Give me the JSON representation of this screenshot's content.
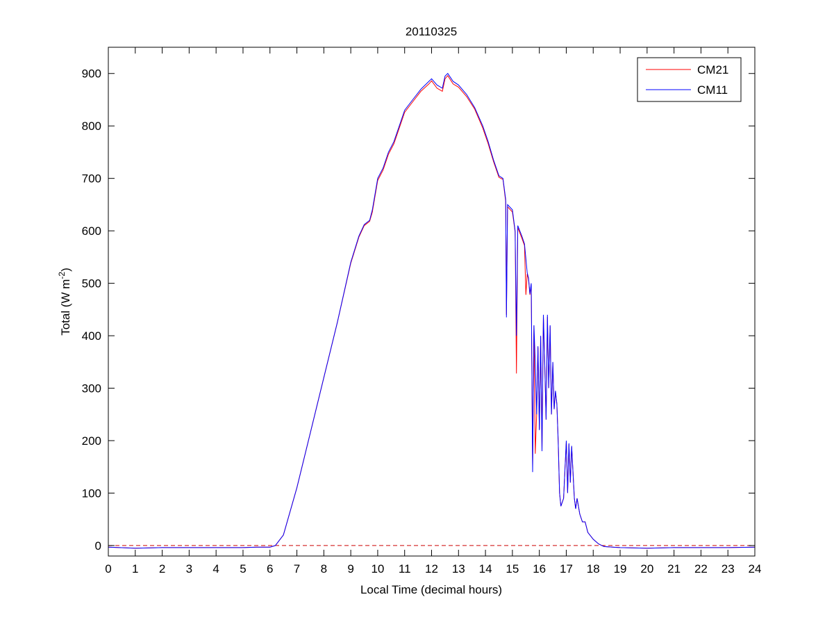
{
  "chart_data": {
    "type": "line",
    "title": "20110325",
    "xlabel": "Local Time (decimal hours)",
    "ylabel": {
      "main": "Total (W m",
      "sup": "-2",
      "close": ")"
    },
    "xlim": [
      0,
      24
    ],
    "ylim": [
      -20,
      950
    ],
    "xticks": [
      0,
      1,
      2,
      3,
      4,
      5,
      6,
      7,
      8,
      9,
      10,
      11,
      12,
      13,
      14,
      15,
      16,
      17,
      18,
      19,
      20,
      21,
      22,
      23,
      24
    ],
    "yticks": [
      0,
      100,
      200,
      300,
      400,
      500,
      600,
      700,
      800,
      900
    ],
    "grid": false,
    "legend_placement": "top-right",
    "reference_line": {
      "y": 0,
      "color": "#cc0000",
      "style": "dashed"
    },
    "series": [
      {
        "name": "CM21",
        "color": "#ff0000",
        "points": [
          [
            0,
            -3
          ],
          [
            1,
            -5
          ],
          [
            2,
            -4
          ],
          [
            3,
            -4
          ],
          [
            4,
            -4
          ],
          [
            5,
            -4
          ],
          [
            5.5,
            -3
          ],
          [
            6,
            -3
          ],
          [
            6.2,
            0
          ],
          [
            6.5,
            20
          ],
          [
            7,
            110
          ],
          [
            7.5,
            215
          ],
          [
            8,
            320
          ],
          [
            8.5,
            425
          ],
          [
            9,
            538
          ],
          [
            9.3,
            588
          ],
          [
            9.5,
            610
          ],
          [
            9.7,
            618
          ],
          [
            9.8,
            636
          ],
          [
            10,
            696
          ],
          [
            10.2,
            716
          ],
          [
            10.4,
            746
          ],
          [
            10.6,
            766
          ],
          [
            10.8,
            796
          ],
          [
            11,
            826
          ],
          [
            11.3,
            846
          ],
          [
            11.6,
            866
          ],
          [
            11.9,
            880
          ],
          [
            12,
            886
          ],
          [
            12.2,
            872
          ],
          [
            12.4,
            866
          ],
          [
            12.5,
            890
          ],
          [
            12.6,
            896
          ],
          [
            12.8,
            880
          ],
          [
            13,
            874
          ],
          [
            13.3,
            856
          ],
          [
            13.6,
            832
          ],
          [
            13.9,
            796
          ],
          [
            14.1,
            766
          ],
          [
            14.3,
            732
          ],
          [
            14.5,
            702
          ],
          [
            14.65,
            698
          ],
          [
            14.75,
            656
          ],
          [
            14.78,
            440
          ],
          [
            14.82,
            646
          ],
          [
            15,
            636
          ],
          [
            15.1,
            598
          ],
          [
            15.15,
            328
          ],
          [
            15.2,
            606
          ],
          [
            15.35,
            586
          ],
          [
            15.45,
            572
          ],
          [
            15.5,
            478
          ],
          [
            15.55,
            518
          ],
          [
            15.6,
            508
          ],
          [
            15.65,
            478
          ],
          [
            15.7,
            498
          ],
          [
            15.75,
            150
          ],
          [
            15.8,
            418
          ],
          [
            15.85,
            175
          ],
          [
            15.9,
            250
          ],
          [
            15.95,
            378
          ],
          [
            16.0,
            222
          ],
          [
            16.05,
            398
          ],
          [
            16.1,
            182
          ],
          [
            16.15,
            436
          ],
          [
            16.2,
            348
          ],
          [
            16.25,
            240
          ],
          [
            16.3,
            436
          ],
          [
            16.35,
            300
          ],
          [
            16.4,
            418
          ],
          [
            16.45,
            250
          ],
          [
            16.5,
            348
          ],
          [
            16.55,
            260
          ],
          [
            16.6,
            293
          ],
          [
            16.65,
            270
          ],
          [
            16.7,
            200
          ],
          [
            16.75,
            100
          ],
          [
            16.8,
            75
          ],
          [
            16.9,
            90
          ],
          [
            17,
            198
          ],
          [
            17.05,
            100
          ],
          [
            17.1,
            193
          ],
          [
            17.15,
            120
          ],
          [
            17.2,
            188
          ],
          [
            17.3,
            90
          ],
          [
            17.35,
            70
          ],
          [
            17.4,
            90
          ],
          [
            17.5,
            60
          ],
          [
            17.6,
            45
          ],
          [
            17.7,
            45
          ],
          [
            17.8,
            25
          ],
          [
            18,
            12
          ],
          [
            18.2,
            3
          ],
          [
            18.4,
            -2
          ],
          [
            19,
            -4
          ],
          [
            20,
            -5
          ],
          [
            21,
            -4
          ],
          [
            22,
            -4
          ],
          [
            23,
            -4
          ],
          [
            24,
            -3
          ]
        ]
      },
      {
        "name": "CM11",
        "color": "#0000ff",
        "points": [
          [
            0,
            -3
          ],
          [
            1,
            -5
          ],
          [
            2,
            -4
          ],
          [
            3,
            -4
          ],
          [
            4,
            -4
          ],
          [
            5,
            -4
          ],
          [
            5.5,
            -3
          ],
          [
            6,
            -3
          ],
          [
            6.2,
            0
          ],
          [
            6.5,
            20
          ],
          [
            7,
            110
          ],
          [
            7.5,
            215
          ],
          [
            8,
            320
          ],
          [
            8.5,
            425
          ],
          [
            9,
            540
          ],
          [
            9.3,
            590
          ],
          [
            9.5,
            612
          ],
          [
            9.7,
            620
          ],
          [
            9.8,
            640
          ],
          [
            10,
            700
          ],
          [
            10.2,
            720
          ],
          [
            10.4,
            750
          ],
          [
            10.6,
            770
          ],
          [
            10.8,
            800
          ],
          [
            11,
            830
          ],
          [
            11.3,
            850
          ],
          [
            11.6,
            870
          ],
          [
            11.9,
            885
          ],
          [
            12,
            890
          ],
          [
            12.2,
            878
          ],
          [
            12.4,
            872
          ],
          [
            12.5,
            895
          ],
          [
            12.6,
            900
          ],
          [
            12.8,
            885
          ],
          [
            13,
            878
          ],
          [
            13.3,
            860
          ],
          [
            13.6,
            835
          ],
          [
            13.9,
            800
          ],
          [
            14.1,
            770
          ],
          [
            14.3,
            735
          ],
          [
            14.5,
            705
          ],
          [
            14.65,
            700
          ],
          [
            14.75,
            660
          ],
          [
            14.78,
            435
          ],
          [
            14.82,
            650
          ],
          [
            15,
            640
          ],
          [
            15.1,
            600
          ],
          [
            15.15,
            400
          ],
          [
            15.2,
            610
          ],
          [
            15.35,
            590
          ],
          [
            15.45,
            575
          ],
          [
            15.55,
            520
          ],
          [
            15.6,
            510
          ],
          [
            15.65,
            480
          ],
          [
            15.7,
            500
          ],
          [
            15.75,
            140
          ],
          [
            15.8,
            420
          ],
          [
            15.85,
            350
          ],
          [
            15.9,
            250
          ],
          [
            15.95,
            380
          ],
          [
            16.0,
            220
          ],
          [
            16.05,
            400
          ],
          [
            16.1,
            180
          ],
          [
            16.15,
            440
          ],
          [
            16.2,
            350
          ],
          [
            16.25,
            240
          ],
          [
            16.3,
            440
          ],
          [
            16.35,
            300
          ],
          [
            16.4,
            420
          ],
          [
            16.45,
            250
          ],
          [
            16.5,
            350
          ],
          [
            16.55,
            260
          ],
          [
            16.6,
            295
          ],
          [
            16.65,
            270
          ],
          [
            16.7,
            200
          ],
          [
            16.75,
            100
          ],
          [
            16.8,
            75
          ],
          [
            16.9,
            90
          ],
          [
            17,
            200
          ],
          [
            17.05,
            100
          ],
          [
            17.1,
            195
          ],
          [
            17.15,
            120
          ],
          [
            17.2,
            190
          ],
          [
            17.3,
            90
          ],
          [
            17.35,
            70
          ],
          [
            17.4,
            90
          ],
          [
            17.5,
            60
          ],
          [
            17.6,
            45
          ],
          [
            17.7,
            45
          ],
          [
            17.8,
            25
          ],
          [
            18,
            12
          ],
          [
            18.2,
            3
          ],
          [
            18.4,
            -2
          ],
          [
            19,
            -4
          ],
          [
            20,
            -5
          ],
          [
            21,
            -4
          ],
          [
            22,
            -4
          ],
          [
            23,
            -4
          ],
          [
            24,
            -3
          ]
        ]
      }
    ]
  }
}
